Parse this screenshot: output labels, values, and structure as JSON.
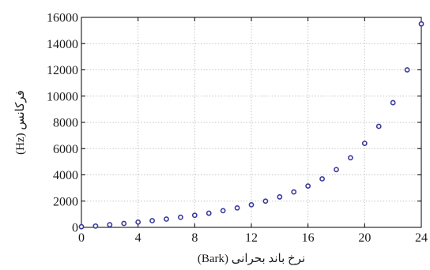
{
  "chart_data": {
    "type": "scatter",
    "title": "",
    "xlabel": "(Bark) نرخ باند بحرانی",
    "ylabel": "(Hz) فرکانس",
    "xlim": [
      0,
      24
    ],
    "ylim": [
      0,
      16000
    ],
    "xticks": [
      0,
      4,
      8,
      12,
      16,
      20,
      24
    ],
    "yticks": [
      0,
      2000,
      4000,
      6000,
      8000,
      10000,
      12000,
      14000,
      16000
    ],
    "grid": true,
    "legend": "none",
    "marker_color": "#3a3a9a",
    "series": [
      {
        "x": [
          0,
          1,
          2,
          3,
          4,
          5,
          6,
          7,
          8,
          9,
          10,
          11,
          12,
          13,
          14,
          15,
          16,
          17,
          18,
          19,
          20,
          21,
          22,
          23,
          24
        ],
        "y": [
          50,
          100,
          200,
          300,
          400,
          510,
          630,
          770,
          920,
          1080,
          1270,
          1480,
          1720,
          2000,
          2320,
          2700,
          3150,
          3700,
          4400,
          5300,
          6400,
          7700,
          9500,
          12000,
          15500
        ]
      }
    ]
  }
}
